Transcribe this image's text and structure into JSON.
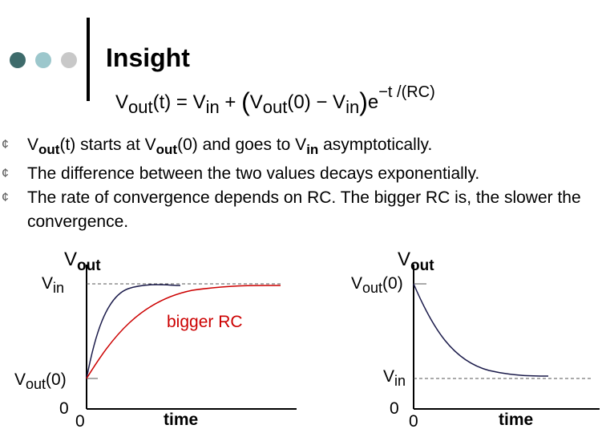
{
  "slide": {
    "title": "Insight",
    "equation": {
      "lhs_v": "V",
      "lhs_sub": "out",
      "lhs_arg": "(t) = V",
      "in_sub": "in",
      "plus": " + ",
      "paren_open": "(",
      "v2": "V",
      "v2_sub": "out",
      "v2_arg": "(0) − V",
      "in2_sub": "in",
      "paren_close": ")",
      "e": "e",
      "exp": "−t /(RC)"
    },
    "bullets": [
      {
        "pre": "V",
        "sub": "out",
        "mid": "(t) starts at V",
        "sub2": "out",
        "mid2": "(0) and goes to V",
        "sub3": "in",
        "post": " asymptotically."
      },
      {
        "text": "The difference between the two values decays exponentially."
      },
      {
        "text": "The rate of convergence depends on RC.  The bigger RC is, the slower the convergence."
      }
    ]
  },
  "left_graph": {
    "y_axis_label": {
      "v": "V",
      "sub": "out"
    },
    "vin_label": {
      "v": "V",
      "sub": "in"
    },
    "vout0_label": {
      "v": "V",
      "sub": "out",
      "arg": "(0)"
    },
    "origin_y": "0",
    "origin_x": "0",
    "x_axis_label": "time",
    "annotation": "bigger RC",
    "annotation_color": "#cc0000"
  },
  "right_graph": {
    "y_axis_label": {
      "v": "V",
      "sub": "out"
    },
    "vout0_label": {
      "v": "V",
      "sub": "out",
      "arg": "(0)"
    },
    "vin_label": {
      "v": "V",
      "sub": "in"
    },
    "origin_y": "0",
    "origin_x": "0",
    "x_axis_label": "time"
  },
  "colors": {
    "dot1": "#3e6b6b",
    "dot2": "#9cc7cc",
    "dot3": "#c8c8c8",
    "curve_dark": "#1a1a4a",
    "curve_red": "#cc0000"
  },
  "icons": [
    "decorative-dots",
    "bullet-icon"
  ]
}
